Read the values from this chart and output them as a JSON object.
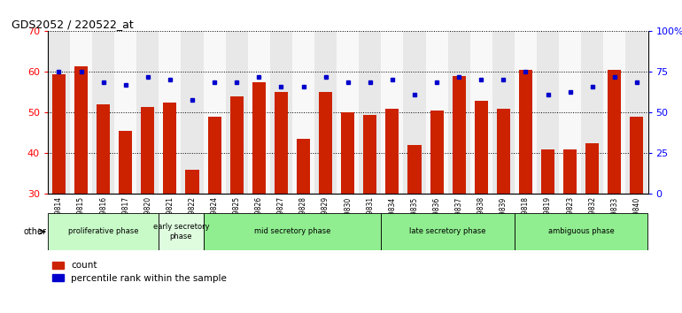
{
  "title": "GDS2052 / 220522_at",
  "samples": [
    "GSM109814",
    "GSM109815",
    "GSM109816",
    "GSM109817",
    "GSM109820",
    "GSM109821",
    "GSM109822",
    "GSM109824",
    "GSM109825",
    "GSM109826",
    "GSM109827",
    "GSM109828",
    "GSM109829",
    "GSM109830",
    "GSM109831",
    "GSM109834",
    "GSM109835",
    "GSM109836",
    "GSM109837",
    "GSM109838",
    "GSM109839",
    "GSM109818",
    "GSM109819",
    "GSM109823",
    "GSM109832",
    "GSM109833",
    "GSM109840"
  ],
  "count_values": [
    59.5,
    61.5,
    52,
    45.5,
    51.5,
    52.5,
    36,
    49,
    54,
    57.5,
    55,
    43.5,
    55,
    50,
    49.5,
    51,
    42,
    50.5,
    59,
    53,
    51,
    60.5,
    41,
    41,
    42.5,
    60.5,
    49
  ],
  "percentile_values": [
    60,
    60,
    57.5,
    56.8,
    58.8,
    58.1,
    53.1,
    57.5,
    57.5,
    58.8,
    56.3,
    56.3,
    58.8,
    57.5,
    57.5,
    58.1,
    54.4,
    57.5,
    58.8,
    58.1,
    58.1,
    60,
    54.4,
    55,
    56.3,
    58.8,
    57.5
  ],
  "phase_data": [
    {
      "label": "proliferative phase",
      "start": 0,
      "end": 5,
      "color": "#c8fac8"
    },
    {
      "label": "early secretory\nphase",
      "start": 5,
      "end": 7,
      "color": "#dffcdf"
    },
    {
      "label": "mid secretory phase",
      "start": 7,
      "end": 15,
      "color": "#90ee90"
    },
    {
      "label": "late secretory phase",
      "start": 15,
      "end": 21,
      "color": "#90ee90"
    },
    {
      "label": "ambiguous phase",
      "start": 21,
      "end": 27,
      "color": "#90ee90"
    }
  ],
  "bar_color": "#cc2200",
  "percentile_color": "#0000cc",
  "ylim_left": [
    30,
    70
  ],
  "ylim_right": [
    0,
    100
  ],
  "yticks_left": [
    30,
    40,
    50,
    60,
    70
  ],
  "yticks_right": [
    0,
    25,
    50,
    75,
    100
  ],
  "ytick_right_labels": [
    "0",
    "25",
    "50",
    "75",
    "100%"
  ],
  "bg_color": "#ffffff",
  "col_colors": [
    "#e8e8e8",
    "#f8f8f8"
  ],
  "legend_labels": [
    "count",
    "percentile rank within the sample"
  ],
  "other_label": "other"
}
